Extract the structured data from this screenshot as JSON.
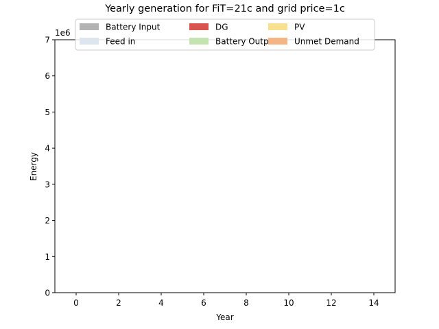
{
  "chart_data": {
    "type": "area",
    "title": "Yearly generation for FiT=21c and grid price=1c",
    "xlabel": "Year",
    "ylabel": "Energy",
    "y_multiplier_label": "1e6",
    "xlim": [
      -1,
      15
    ],
    "ylim": [
      0,
      7
    ],
    "x_ticks": [
      0,
      2,
      4,
      6,
      8,
      10,
      12,
      14
    ],
    "y_ticks": [
      0,
      1,
      2,
      3,
      4,
      5,
      6,
      7
    ],
    "x": [
      0,
      1,
      2,
      3,
      4,
      5,
      6,
      7,
      8,
      9,
      10,
      11,
      12,
      13,
      14
    ],
    "series": [
      {
        "name": "Battery Input",
        "color": "#b3b3b3",
        "values": [
          0,
          0,
          0,
          0,
          0,
          0,
          0,
          0,
          0,
          0,
          0,
          0,
          0,
          0,
          0
        ]
      },
      {
        "name": "DG",
        "color": "#d9534f",
        "values": [
          0,
          0,
          0,
          0,
          0,
          0,
          0,
          0,
          0,
          0,
          0,
          0,
          0,
          0,
          0
        ]
      },
      {
        "name": "PV",
        "color": "#f7e08f",
        "values": [
          0,
          0,
          0,
          0,
          0,
          0,
          0,
          0,
          0,
          0,
          0,
          0,
          0,
          0,
          0
        ]
      },
      {
        "name": "Feed in",
        "color": "#dde6ee",
        "values": [
          0,
          0,
          0,
          0,
          0,
          0,
          0,
          0,
          0,
          0,
          0,
          0,
          0,
          0,
          0
        ]
      },
      {
        "name": "Battery Output",
        "color": "#c4e3b1",
        "values": [
          0,
          0,
          0,
          0,
          0,
          0,
          0,
          0,
          0,
          0,
          0,
          0,
          0,
          0,
          0
        ]
      },
      {
        "name": "Unmet Demand",
        "color": "#f5b483",
        "values": [
          0,
          0,
          0,
          0,
          0,
          0,
          0,
          0,
          0,
          0,
          0,
          0,
          0,
          0,
          0
        ]
      }
    ],
    "legend": {
      "placement": "top-center",
      "columns": 3
    },
    "grid": false
  }
}
